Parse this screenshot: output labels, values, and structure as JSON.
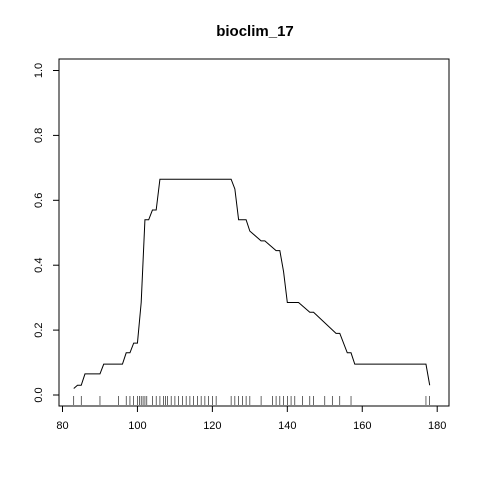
{
  "chart_data": {
    "type": "line",
    "title": "bioclim_17",
    "xlabel": "",
    "ylabel": "",
    "xlim": [
      80,
      180
    ],
    "ylim": [
      0,
      1
    ],
    "x_ticks": [
      80,
      100,
      120,
      140,
      160,
      180
    ],
    "y_ticks": [
      0.0,
      0.2,
      0.4,
      0.6,
      0.8,
      1.0
    ],
    "x_tick_labels": [
      "80",
      "100",
      "120",
      "140",
      "160",
      "180"
    ],
    "y_tick_labels": [
      "0.0",
      "0.2",
      "0.4",
      "0.6",
      "0.8",
      "1.0"
    ],
    "grid": false,
    "series": [
      {
        "x": [
          83,
          84,
          85,
          86,
          90,
          91,
          96,
          97,
          98,
          99,
          100,
          101,
          102,
          103,
          104,
          105,
          106,
          107,
          125,
          126,
          127,
          129,
          130,
          133,
          134,
          137,
          138,
          139,
          140,
          142,
          143,
          146,
          147,
          153,
          154,
          156,
          157,
          158,
          177,
          178
        ],
        "y": [
          0.02,
          0.03,
          0.03,
          0.065,
          0.065,
          0.095,
          0.095,
          0.13,
          0.13,
          0.16,
          0.16,
          0.285,
          0.54,
          0.54,
          0.57,
          0.57,
          0.665,
          0.665,
          0.665,
          0.635,
          0.54,
          0.54,
          0.505,
          0.475,
          0.475,
          0.445,
          0.445,
          0.38,
          0.285,
          0.285,
          0.285,
          0.255,
          0.255,
          0.19,
          0.19,
          0.13,
          0.13,
          0.095,
          0.095,
          0.03
        ]
      }
    ],
    "rug_x": [
      83,
      85,
      90,
      95,
      97,
      98,
      99,
      100,
      100.5,
      101,
      101.5,
      102,
      102.5,
      104,
      105,
      106,
      107,
      107.5,
      108,
      109,
      110,
      111,
      112,
      113,
      114,
      115,
      116,
      117,
      118,
      119,
      120,
      121,
      125,
      126,
      127,
      128,
      129,
      130,
      133,
      136,
      137,
      138,
      139,
      140,
      141,
      142,
      144,
      146,
      147,
      150,
      152,
      154,
      157,
      177,
      178
    ]
  }
}
